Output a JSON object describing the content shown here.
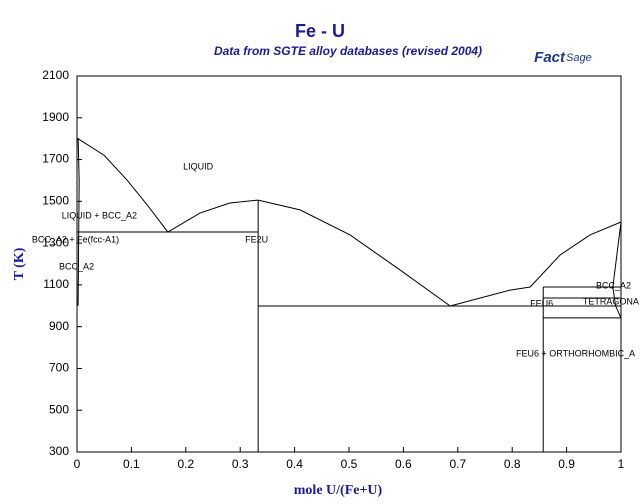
{
  "chart_data": {
    "type": "phase-diagram",
    "title": "Fe - U",
    "subtitle": "Data from SGTE alloy databases (revised 2004)",
    "logo": {
      "bold": "Fact",
      "light": "Sage"
    },
    "xlabel": "mole U/(Fe+U)",
    "ylabel": "T (K)",
    "xlim": [
      0,
      1
    ],
    "ylim": [
      300,
      2100
    ],
    "xticks": [
      0,
      0.1,
      0.2,
      0.3,
      0.4,
      0.5,
      0.6,
      0.7,
      0.8,
      0.9,
      1
    ],
    "yticks": [
      300,
      500,
      700,
      900,
      1100,
      1300,
      1500,
      1700,
      1900,
      2100
    ],
    "color": "#000000",
    "boundaries": [
      {
        "x": [
          0,
          0.05,
          0.092,
          0.13,
          0.167
        ],
        "y": [
          1803,
          1720,
          1602,
          1480,
          1353
        ]
      },
      {
        "x": [
          0.167,
          0.226,
          0.281,
          0.333
        ],
        "y": [
          1353,
          1444,
          1492,
          1506
        ]
      },
      {
        "x": [
          0.333,
          0.41,
          0.502,
          0.594,
          0.686
        ],
        "y": [
          1506,
          1459,
          1339,
          1171,
          999
        ]
      },
      {
        "x": [
          0.686,
          0.796,
          0.833,
          0.888,
          0.943,
          1
        ],
        "y": [
          999,
          1075,
          1090,
          1243,
          1339,
          1401
        ]
      },
      {
        "x": [
          0,
          0.333
        ],
        "y": [
          1353,
          1353
        ]
      },
      {
        "x": [
          0.333,
          1
        ],
        "y": [
          999,
          999
        ]
      },
      {
        "x": [
          0.333,
          0.333
        ],
        "y": [
          1506,
          300
        ]
      },
      {
        "x": [
          0.857,
          0.857
        ],
        "y": [
          1090,
          300
        ]
      },
      {
        "x": [
          0.857,
          1
        ],
        "y": [
          1090,
          1090
        ]
      },
      {
        "x": [
          0.857,
          1
        ],
        "y": [
          1037,
          1037
        ]
      },
      {
        "x": [
          0.857,
          1
        ],
        "y": [
          942,
          942
        ]
      },
      {
        "x": [
          0.002,
          0.004,
          0.002
        ],
        "y": [
          1803,
          1600,
          1000
        ]
      },
      {
        "x": [
          1,
          0.985,
          0.99,
          1
        ],
        "y": [
          1401,
          1090,
          1000,
          942
        ]
      }
    ],
    "annotations": [
      {
        "text": "LIQUID",
        "x": 0.195,
        "y": 1664
      },
      {
        "text": "LIQUID + BCC_A2",
        "x": -0.028,
        "y": 1430
      },
      {
        "text": "BCC_A2 + Fe(fcc-A1)",
        "x": -0.083,
        "y": 1315
      },
      {
        "text": "BCC_A2",
        "x": -0.033,
        "y": 1186
      },
      {
        "text": "FE2U",
        "x": 0.309,
        "y": 1315
      },
      {
        "text": "FEU6",
        "x": 0.833,
        "y": 1009
      },
      {
        "text": "BCC_A2",
        "x": 0.954,
        "y": 1095
      },
      {
        "text": "TETRAGONA",
        "x": 0.93,
        "y": 1018
      },
      {
        "text": "FEU6 + ORTHORHOMBIC_A",
        "x": 0.807,
        "y": 769
      }
    ]
  }
}
